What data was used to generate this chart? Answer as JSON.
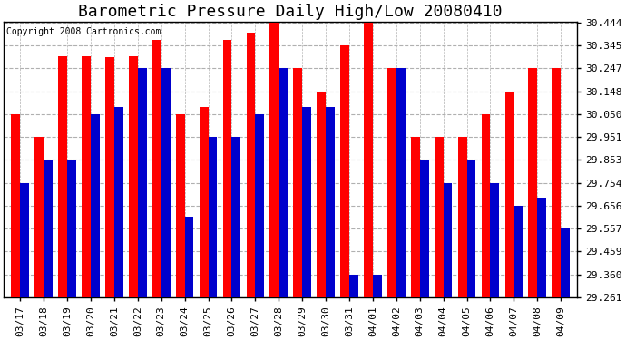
{
  "title": "Barometric Pressure Daily High/Low 20080410",
  "copyright": "Copyright 2008 Cartronics.com",
  "dates": [
    "03/17",
    "03/18",
    "03/19",
    "03/20",
    "03/21",
    "03/22",
    "03/23",
    "03/24",
    "03/25",
    "03/26",
    "03/27",
    "03/28",
    "03/29",
    "03/30",
    "03/31",
    "04/01",
    "04/02",
    "04/03",
    "04/04",
    "04/05",
    "04/06",
    "04/07",
    "04/08",
    "04/09"
  ],
  "highs": [
    30.05,
    29.951,
    30.3,
    30.3,
    30.295,
    30.3,
    30.37,
    30.05,
    30.08,
    30.37,
    30.4,
    30.444,
    30.247,
    30.148,
    30.345,
    30.444,
    30.247,
    29.951,
    29.951,
    29.951,
    30.05,
    30.148,
    30.247,
    30.247
  ],
  "lows": [
    29.754,
    29.853,
    29.853,
    30.05,
    30.08,
    30.247,
    30.247,
    29.61,
    29.951,
    29.951,
    30.05,
    30.247,
    30.08,
    30.08,
    29.36,
    29.36,
    30.247,
    29.853,
    29.754,
    29.853,
    29.754,
    29.656,
    29.69,
    29.557
  ],
  "high_color": "#ff0000",
  "low_color": "#0000cc",
  "bg_color": "#ffffff",
  "plot_bg_color": "#ffffff",
  "grid_color": "#b0b0b0",
  "yticks": [
    29.261,
    29.36,
    29.459,
    29.557,
    29.656,
    29.754,
    29.853,
    29.951,
    30.05,
    30.148,
    30.247,
    30.345,
    30.444
  ],
  "ymin": 29.261,
  "ymax": 30.444,
  "title_fontsize": 13,
  "copyright_fontsize": 7,
  "tick_fontsize": 8
}
